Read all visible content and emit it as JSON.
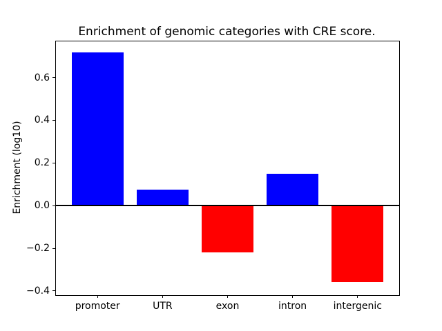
{
  "chart_data": {
    "type": "bar",
    "title": "Enrichment of genomic categories with CRE score.",
    "ylabel": "Enrichment (log10)",
    "xlabel": "",
    "categories": [
      "promoter",
      "UTR",
      "exon",
      "intron",
      "intergenic"
    ],
    "values": [
      0.72,
      0.075,
      -0.22,
      0.15,
      -0.36
    ],
    "bar_colors": [
      "#0000ff",
      "#0000ff",
      "#ff0000",
      "#0000ff",
      "#ff0000"
    ],
    "positive_color": "#0000ff",
    "negative_color": "#ff0000",
    "ylim": [
      -0.42,
      0.77
    ],
    "yticks": [
      {
        "value": -0.4,
        "label": "−0.4"
      },
      {
        "value": -0.2,
        "label": "−0.2"
      },
      {
        "value": 0.0,
        "label": "0.0"
      },
      {
        "value": 0.2,
        "label": "0.2"
      },
      {
        "value": 0.4,
        "label": "0.4"
      },
      {
        "value": 0.6,
        "label": "0.6"
      }
    ],
    "bar_width_fraction": 0.8,
    "x_edge_margin": 0.64,
    "zero_line": true,
    "grid": false,
    "legend_position": "none"
  }
}
